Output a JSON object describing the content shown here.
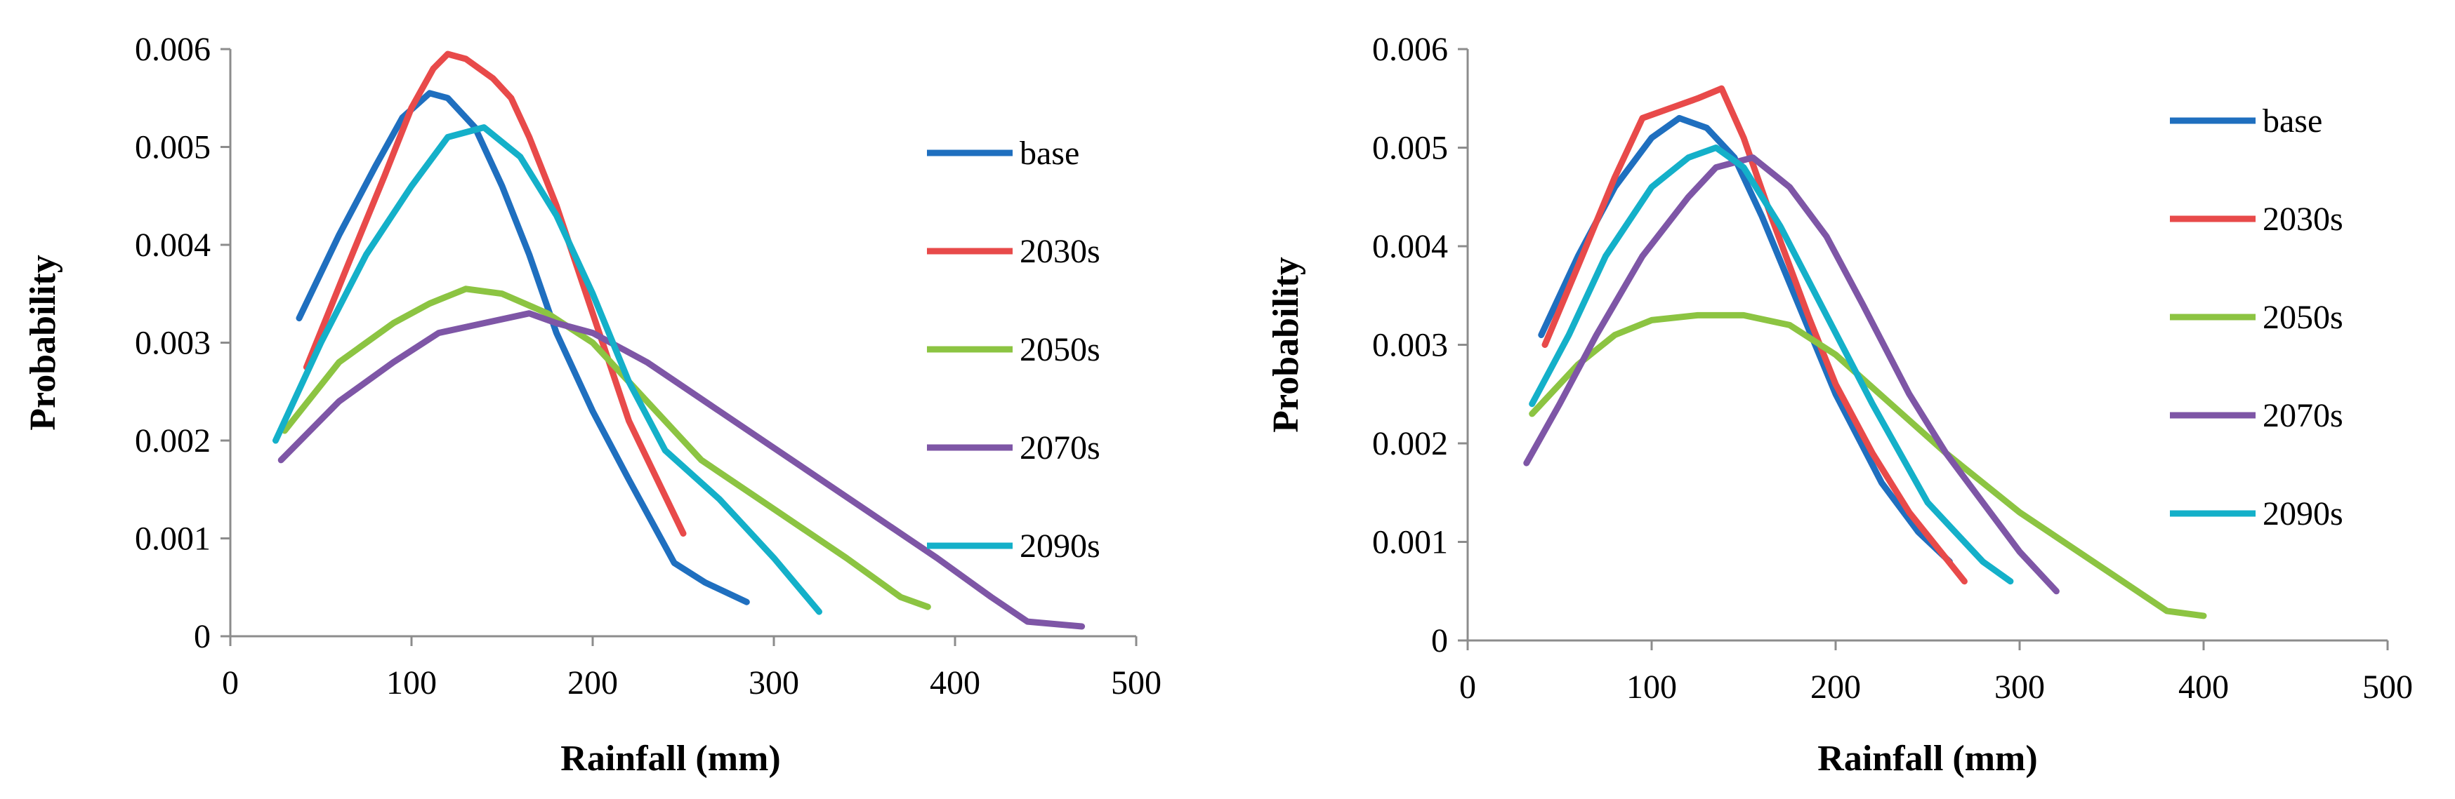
{
  "chart_data": [
    {
      "type": "line",
      "title": "",
      "xlabel": "Rainfall (mm)",
      "ylabel": "Probability",
      "xlim": [
        0,
        500
      ],
      "ylim": [
        0,
        0.006
      ],
      "xticks": [
        "0",
        "100",
        "200",
        "300",
        "400",
        "500"
      ],
      "yticks": [
        "0",
        "0.001",
        "0.002",
        "0.003",
        "0.004",
        "0.005",
        "0.006"
      ],
      "grid": false,
      "legend_position": "right",
      "series": [
        {
          "name": "base",
          "color": "#1f6fbf",
          "x": [
            38,
            60,
            80,
            95,
            110,
            120,
            135,
            150,
            165,
            180,
            200,
            220,
            245,
            262,
            285
          ],
          "y": [
            0.00325,
            0.0041,
            0.0048,
            0.0053,
            0.00555,
            0.0055,
            0.0052,
            0.0046,
            0.0039,
            0.0031,
            0.0023,
            0.0016,
            0.00075,
            0.00055,
            0.00035
          ]
        },
        {
          "name": "2030s",
          "color": "#e84a4a",
          "x": [
            42,
            65,
            85,
            100,
            112,
            120,
            130,
            145,
            155,
            165,
            180,
            200,
            220,
            250
          ],
          "y": [
            0.00275,
            0.0038,
            0.0047,
            0.0054,
            0.0058,
            0.00595,
            0.0059,
            0.0057,
            0.0055,
            0.0051,
            0.0044,
            0.0033,
            0.0022,
            0.00105
          ]
        },
        {
          "name": "2050s",
          "color": "#8cc442",
          "x": [
            30,
            60,
            90,
            110,
            130,
            150,
            175,
            200,
            230,
            260,
            300,
            340,
            370,
            385
          ],
          "y": [
            0.0021,
            0.0028,
            0.0032,
            0.0034,
            0.00355,
            0.0035,
            0.0033,
            0.003,
            0.0024,
            0.0018,
            0.0013,
            0.0008,
            0.0004,
            0.0003
          ]
        },
        {
          "name": "2070s",
          "color": "#7e56a6",
          "x": [
            28,
            60,
            90,
            115,
            140,
            165,
            180,
            200,
            230,
            270,
            310,
            350,
            390,
            420,
            440,
            470
          ],
          "y": [
            0.0018,
            0.0024,
            0.0028,
            0.0031,
            0.0032,
            0.0033,
            0.0032,
            0.0031,
            0.0028,
            0.0023,
            0.0018,
            0.0013,
            0.0008,
            0.0004,
            0.00015,
            0.0001
          ]
        },
        {
          "name": "2090s",
          "color": "#14b0c9",
          "x": [
            25,
            50,
            75,
            100,
            120,
            140,
            160,
            180,
            200,
            220,
            240,
            270,
            300,
            325
          ],
          "y": [
            0.002,
            0.003,
            0.0039,
            0.0046,
            0.0051,
            0.0052,
            0.0049,
            0.0043,
            0.0035,
            0.0026,
            0.0019,
            0.0014,
            0.0008,
            0.00025
          ]
        }
      ]
    },
    {
      "type": "line",
      "title": "",
      "xlabel": "Rainfall (mm)",
      "ylabel": "Probability",
      "xlim": [
        0,
        500
      ],
      "ylim": [
        0,
        0.006
      ],
      "xticks": [
        "0",
        "100",
        "200",
        "300",
        "400",
        "500"
      ],
      "yticks": [
        "0",
        "0.001",
        "0.002",
        "0.003",
        "0.004",
        "0.005",
        "0.006"
      ],
      "grid": false,
      "legend_position": "right",
      "series": [
        {
          "name": "base",
          "color": "#1f6fbf",
          "x": [
            40,
            60,
            80,
            100,
            115,
            130,
            145,
            160,
            180,
            200,
            225,
            245,
            262
          ],
          "y": [
            0.0031,
            0.0039,
            0.0046,
            0.0051,
            0.0053,
            0.0052,
            0.0049,
            0.0043,
            0.0034,
            0.0025,
            0.0016,
            0.0011,
            0.0008
          ]
        },
        {
          "name": "2030s",
          "color": "#e84a4a",
          "x": [
            42,
            60,
            80,
            95,
            110,
            125,
            138,
            150,
            165,
            185,
            200,
            220,
            240,
            270
          ],
          "y": [
            0.003,
            0.0038,
            0.0047,
            0.0053,
            0.0054,
            0.0055,
            0.0056,
            0.0051,
            0.0043,
            0.0033,
            0.0026,
            0.0019,
            0.0013,
            0.0006
          ]
        },
        {
          "name": "2050s",
          "color": "#8cc442",
          "x": [
            35,
            60,
            80,
            100,
            125,
            150,
            175,
            200,
            230,
            260,
            300,
            340,
            380,
            400
          ],
          "y": [
            0.0023,
            0.0028,
            0.0031,
            0.00325,
            0.0033,
            0.0033,
            0.0032,
            0.0029,
            0.0024,
            0.0019,
            0.0013,
            0.0008,
            0.0003,
            0.00025
          ]
        },
        {
          "name": "2070s",
          "color": "#7e56a6",
          "x": [
            32,
            50,
            70,
            95,
            120,
            135,
            155,
            175,
            195,
            215,
            240,
            260,
            280,
            300,
            320
          ],
          "y": [
            0.0018,
            0.0024,
            0.0031,
            0.0039,
            0.0045,
            0.0048,
            0.0049,
            0.0046,
            0.0041,
            0.0034,
            0.0025,
            0.0019,
            0.0014,
            0.0009,
            0.0005
          ]
        },
        {
          "name": "2090s",
          "color": "#14b0c9",
          "x": [
            35,
            55,
            75,
            100,
            120,
            135,
            150,
            170,
            195,
            220,
            250,
            280,
            295
          ],
          "y": [
            0.0024,
            0.0031,
            0.0039,
            0.0046,
            0.0049,
            0.005,
            0.0048,
            0.0042,
            0.0033,
            0.0024,
            0.0014,
            0.0008,
            0.0006
          ]
        }
      ]
    }
  ]
}
